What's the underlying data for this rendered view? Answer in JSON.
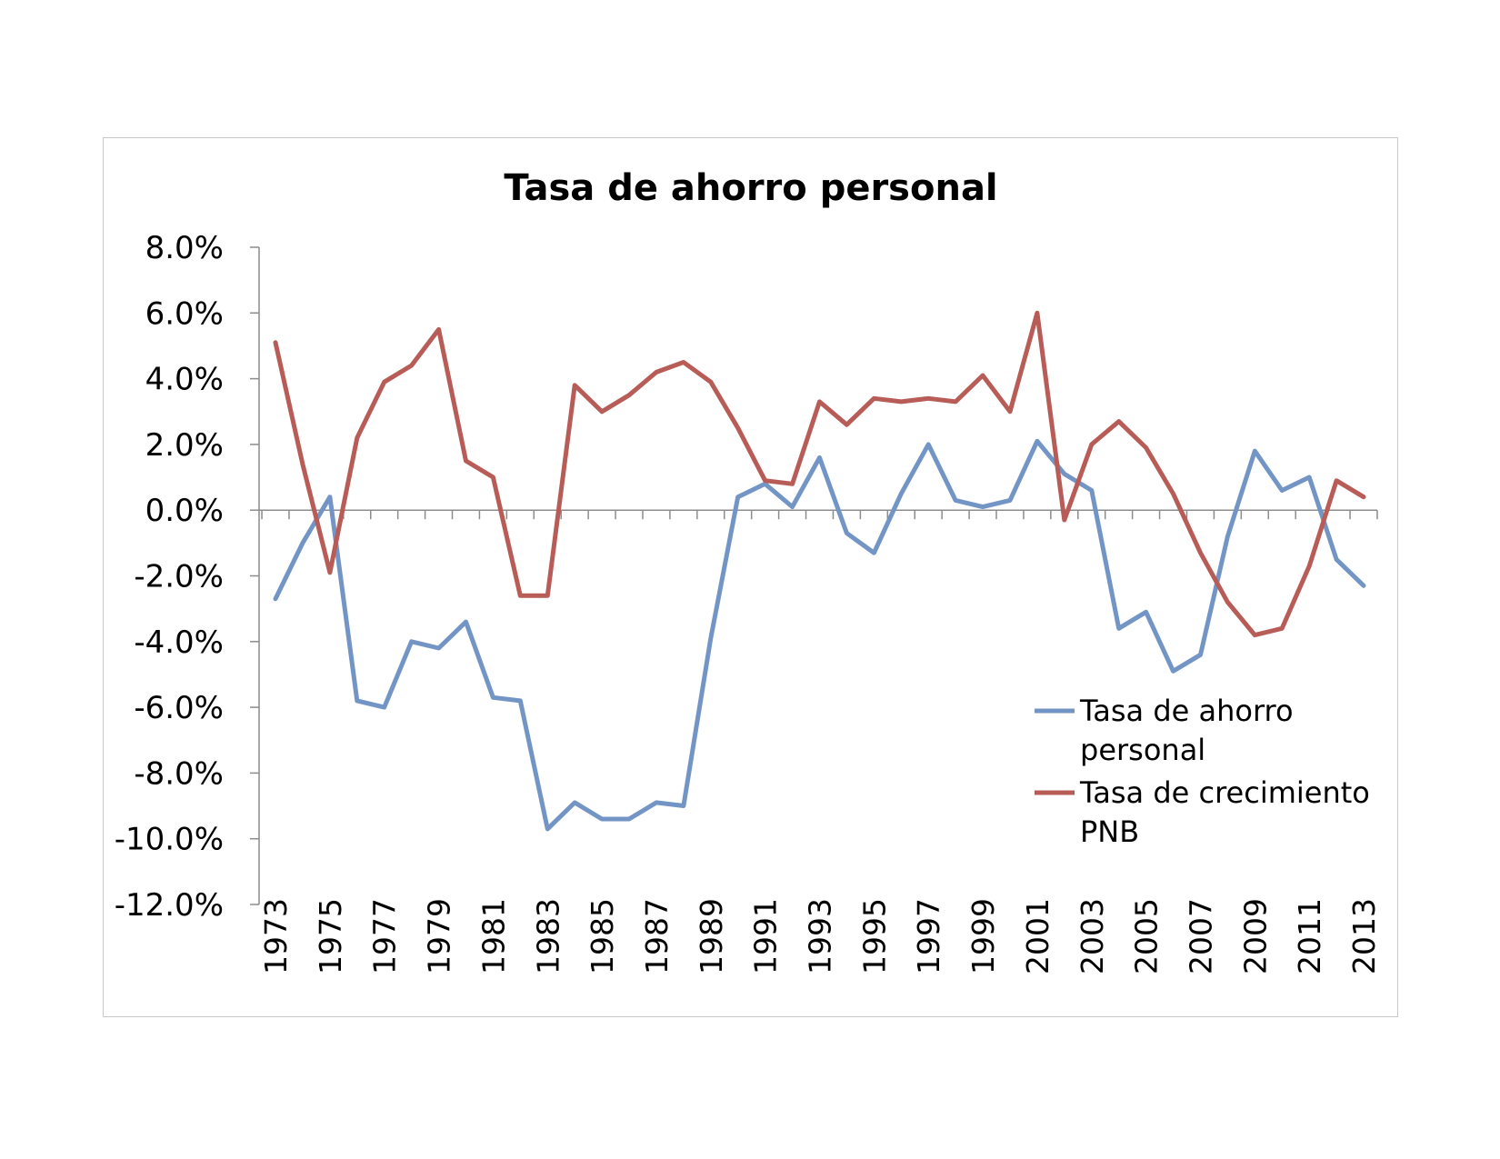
{
  "chart_data": {
    "type": "line",
    "title": "Tasa de ahorro personal",
    "xlabel": "",
    "ylabel": "",
    "ylim": [
      -12,
      8
    ],
    "ytick_step": 2,
    "ytick_format": "percent_1dp",
    "x": [
      1973,
      1974,
      1975,
      1976,
      1977,
      1978,
      1979,
      1980,
      1981,
      1982,
      1983,
      1984,
      1985,
      1986,
      1987,
      1988,
      1989,
      1990,
      1991,
      1992,
      1993,
      1994,
      1995,
      1996,
      1997,
      1998,
      1999,
      2000,
      2001,
      2002,
      2003,
      2004,
      2005,
      2006,
      2007,
      2008,
      2009,
      2010,
      2011,
      2012,
      2013
    ],
    "xtick_labels": [
      "1973",
      "1975",
      "1977",
      "1979",
      "1981",
      "1983",
      "1985",
      "1987",
      "1989",
      "1991",
      "1993",
      "1995",
      "1997",
      "1999",
      "2001",
      "2003",
      "2005",
      "2007",
      "2009",
      "2011",
      "2013"
    ],
    "grid": false,
    "legend_position": "lower-right",
    "series": [
      {
        "name": "Tasa de ahorro personal",
        "color": "#7395c6",
        "values": [
          -2.7,
          -1.0,
          0.4,
          -5.8,
          -6.0,
          -4.0,
          -4.2,
          -3.4,
          -5.7,
          -5.8,
          -9.7,
          -8.9,
          -9.4,
          -9.4,
          -8.9,
          -9.0,
          -3.9,
          0.4,
          0.8,
          0.1,
          1.6,
          -0.7,
          -1.3,
          0.5,
          2.0,
          0.3,
          0.1,
          0.3,
          2.1,
          1.1,
          0.6,
          -3.6,
          -3.1,
          -4.9,
          -4.4,
          -0.8,
          1.8,
          0.6,
          1.0,
          -1.5,
          -2.3
        ]
      },
      {
        "name": "Tasa de crecimiento PNB",
        "color": "#b85c57",
        "values": [
          5.1,
          1.4,
          -1.9,
          2.2,
          3.9,
          4.4,
          5.5,
          1.5,
          1.0,
          -2.6,
          -2.6,
          3.8,
          3.0,
          3.5,
          4.2,
          4.5,
          3.9,
          2.5,
          0.9,
          0.8,
          3.3,
          2.6,
          3.4,
          3.3,
          3.4,
          3.3,
          4.1,
          3.0,
          6.0,
          -0.3,
          2.0,
          2.7,
          1.9,
          0.5,
          -1.3,
          -2.8,
          -3.8,
          -3.6,
          -1.7,
          0.9,
          0.4
        ]
      }
    ],
    "legend_lines": [
      [
        "Tasa de ahorro",
        "personal"
      ],
      [
        "Tasa de crecimiento",
        "PNB"
      ]
    ]
  }
}
